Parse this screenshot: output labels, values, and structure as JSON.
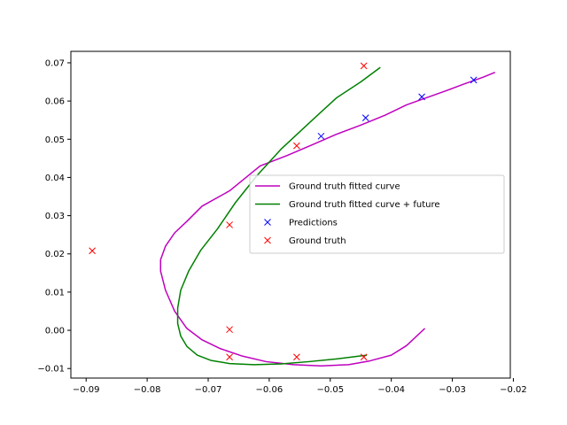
{
  "chart_data": {
    "type": "line",
    "title": "",
    "xlabel": "",
    "ylabel": "",
    "xlim": [
      -0.0925,
      -0.0205
    ],
    "ylim": [
      -0.0125,
      0.073
    ],
    "xticks": [
      -0.09,
      -0.08,
      -0.07,
      -0.06,
      -0.05,
      -0.04,
      -0.03,
      -0.02
    ],
    "xtick_labels": [
      "−0.09",
      "−0.08",
      "−0.07",
      "−0.06",
      "−0.05",
      "−0.04",
      "−0.03",
      "−0.02"
    ],
    "yticks": [
      -0.01,
      0.0,
      0.01,
      0.02,
      0.03,
      0.04,
      0.05,
      0.06,
      0.07
    ],
    "ytick_labels": [
      "−0.01",
      "0.00",
      "0.01",
      "0.02",
      "0.03",
      "0.04",
      "0.05",
      "0.06",
      "0.07"
    ],
    "grid": false,
    "legend_position": "right",
    "series": [
      {
        "name": "Ground truth fitted curve",
        "kind": "line",
        "color": "#bf00bf",
        "x": [
          -0.023,
          -0.025,
          -0.028,
          -0.031,
          -0.034,
          -0.0375,
          -0.041,
          -0.045,
          -0.049,
          -0.053,
          -0.057,
          -0.0615,
          -0.0665,
          -0.071,
          -0.0735,
          -0.0755,
          -0.077,
          -0.0778,
          -0.0778,
          -0.077,
          -0.0755,
          -0.0735,
          -0.071,
          -0.068,
          -0.0645,
          -0.0605,
          -0.056,
          -0.0515,
          -0.047,
          -0.0435,
          -0.04,
          -0.0375,
          -0.0345
        ],
        "y": [
          0.0675,
          0.0662,
          0.0645,
          0.0627,
          0.061,
          0.059,
          0.0563,
          0.0537,
          0.0513,
          0.0485,
          0.0458,
          0.043,
          0.0365,
          0.0325,
          0.0285,
          0.0255,
          0.022,
          0.0185,
          0.0155,
          0.0105,
          0.005,
          0.0005,
          -0.0025,
          -0.0048,
          -0.0067,
          -0.0082,
          -0.009,
          -0.0093,
          -0.009,
          -0.008,
          -0.0065,
          -0.004,
          0.0005
        ]
      },
      {
        "name": "Ground truth fitted curve + future",
        "kind": "line",
        "color": "#008000",
        "x": [
          -0.0418,
          -0.045,
          -0.049,
          -0.0535,
          -0.058,
          -0.062,
          -0.0655,
          -0.0685,
          -0.0712,
          -0.0732,
          -0.0745,
          -0.075,
          -0.075,
          -0.0745,
          -0.0735,
          -0.0718,
          -0.0695,
          -0.0665,
          -0.0625,
          -0.058,
          -0.0535,
          -0.049,
          -0.0455,
          -0.044
        ],
        "y": [
          0.0688,
          0.065,
          0.0608,
          0.0542,
          0.0475,
          0.0405,
          0.0335,
          0.0265,
          0.021,
          0.0155,
          0.0105,
          0.0058,
          0.0018,
          -0.0015,
          -0.0042,
          -0.0065,
          -0.0079,
          -0.0087,
          -0.009,
          -0.0088,
          -0.0082,
          -0.0075,
          -0.0068,
          -0.0065
        ]
      },
      {
        "name": "Predictions",
        "kind": "marker",
        "color": "#0000ff",
        "x": [
          -0.0265,
          -0.035,
          -0.0442,
          -0.0515
        ],
        "y": [
          0.0655,
          0.0611,
          0.0556,
          0.0508
        ]
      },
      {
        "name": "Ground truth",
        "kind": "marker",
        "color": "#ff0000",
        "x": [
          -0.0445,
          -0.0555,
          -0.0665,
          -0.089,
          -0.0665,
          -0.0665,
          -0.0555,
          -0.0445
        ],
        "y": [
          0.0692,
          0.0483,
          0.0276,
          0.0208,
          0.0002,
          -0.007,
          -0.007,
          -0.007
        ]
      }
    ]
  }
}
